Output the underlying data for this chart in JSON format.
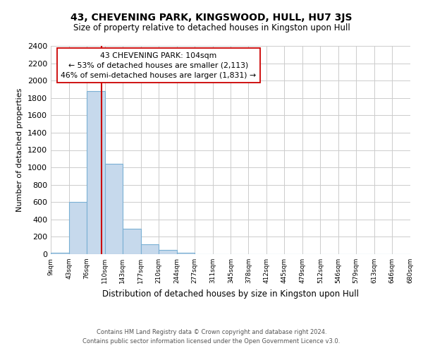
{
  "title": "43, CHEVENING PARK, KINGSWOOD, HULL, HU7 3JS",
  "subtitle": "Size of property relative to detached houses in Kingston upon Hull",
  "xlabel": "Distribution of detached houses by size in Kingston upon Hull",
  "ylabel": "Number of detached properties",
  "bar_edges": [
    9,
    43,
    76,
    110,
    143,
    177,
    210,
    244,
    277,
    311,
    345,
    378,
    412,
    445,
    479,
    512,
    546,
    579,
    613,
    646,
    680
  ],
  "bar_heights": [
    20,
    600,
    1880,
    1040,
    290,
    110,
    50,
    20,
    0,
    0,
    0,
    0,
    0,
    0,
    0,
    0,
    0,
    0,
    0,
    0
  ],
  "bar_color": "#c6d9ec",
  "bar_edgecolor": "#7ab0d4",
  "property_line_x": 104,
  "property_line_color": "#cc0000",
  "ylim": [
    0,
    2400
  ],
  "yticks": [
    0,
    200,
    400,
    600,
    800,
    1000,
    1200,
    1400,
    1600,
    1800,
    2000,
    2200,
    2400
  ],
  "annotation_text": "43 CHEVENING PARK: 104sqm\n← 53% of detached houses are smaller (2,113)\n46% of semi-detached houses are larger (1,831) →",
  "annotation_box_color": "#ffffff",
  "annotation_box_edgecolor": "#cc0000",
  "footer_line1": "Contains HM Land Registry data © Crown copyright and database right 2024.",
  "footer_line2": "Contains public sector information licensed under the Open Government Licence v3.0.",
  "background_color": "#ffffff",
  "grid_color": "#cccccc"
}
